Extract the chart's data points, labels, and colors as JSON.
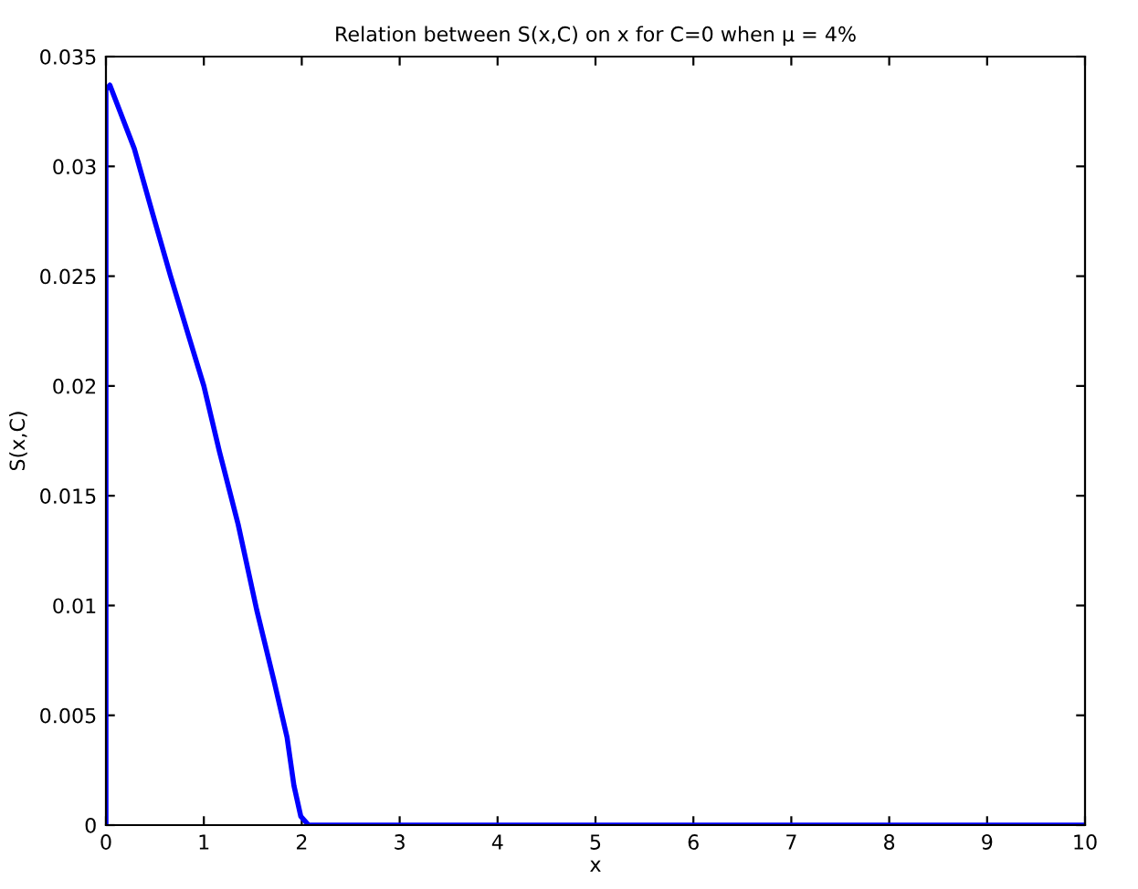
{
  "chart_data": {
    "type": "line",
    "title": "Relation between S(x,C) on x for C=0 when μ = 4%",
    "xlabel": "x",
    "ylabel": "S(x,C)",
    "series": [
      {
        "color": "#0000ff",
        "x": [
          0,
          0,
          0.04,
          0.29,
          0.48,
          0.66,
          0.85,
          1.0,
          1.16,
          1.35,
          1.54,
          1.72,
          1.85,
          1.92,
          1.99,
          2.07,
          10
        ],
        "values": [
          0,
          0.0335,
          0.0337,
          0.0308,
          0.0278,
          0.025,
          0.0222,
          0.02,
          0.017,
          0.0137,
          0.0098,
          0.0065,
          0.004,
          0.0018,
          0.0004,
          0,
          0
        ]
      }
    ],
    "xlim": [
      0,
      10
    ],
    "ylim": [
      0,
      0.035
    ],
    "xticks": [
      0,
      1,
      2,
      3,
      4,
      5,
      6,
      7,
      8,
      9,
      10
    ],
    "yticks": [
      0,
      0.005,
      0.01,
      0.015,
      0.02,
      0.025,
      0.03,
      0.035
    ],
    "grid": false,
    "line_style": "solid",
    "marker": "none"
  }
}
